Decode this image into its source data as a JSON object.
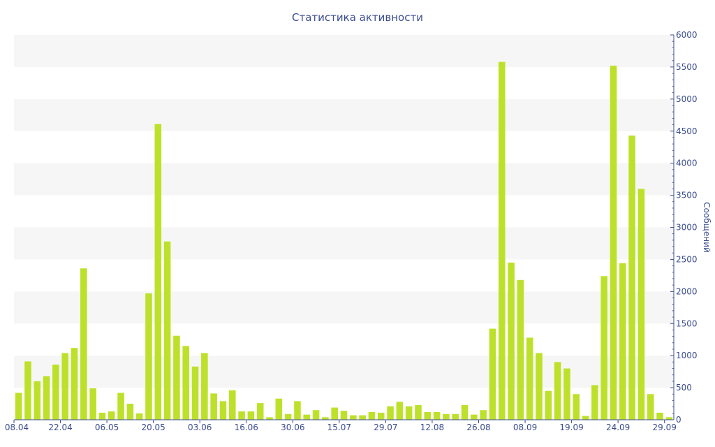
{
  "chart_data": {
    "type": "bar",
    "title": "Статистика активности",
    "ylabel": "Сообщений",
    "ylim": [
      0,
      6000
    ],
    "yticks": [
      0,
      500,
      1000,
      1500,
      2000,
      2500,
      3000,
      3500,
      4000,
      4500,
      5000,
      5500,
      6000
    ],
    "y_axis_side": "right",
    "grid": "alternating horizontal bands",
    "bar_color": "#bde12b",
    "band_color": "#f6f6f6",
    "text_color": "#3b4d8f",
    "xtick_labels": [
      "08.04",
      "22.04",
      "06.05",
      "20.05",
      "03.06",
      "16.06",
      "30.06",
      "15.07",
      "29.07",
      "12.08",
      "26.08",
      "08.09",
      "19.09",
      "24.09",
      "29.09"
    ],
    "xtick_bar_index": [
      0,
      5,
      10,
      15,
      20,
      25,
      30,
      35,
      40,
      45,
      50,
      55,
      60,
      65,
      70
    ],
    "values": [
      420,
      910,
      600,
      680,
      860,
      1040,
      1120,
      2360,
      490,
      110,
      130,
      420,
      250,
      100,
      1970,
      4610,
      2780,
      1310,
      1150,
      830,
      1040,
      410,
      290,
      460,
      130,
      130,
      260,
      40,
      330,
      90,
      290,
      80,
      150,
      40,
      190,
      140,
      70,
      70,
      120,
      110,
      210,
      280,
      210,
      230,
      120,
      120,
      90,
      90,
      230,
      80,
      150,
      1420,
      5580,
      2450,
      2180,
      1280,
      1040,
      450,
      900,
      800,
      400,
      60,
      540,
      2240,
      5520,
      2440,
      4430,
      3600,
      400,
      110,
      40
    ]
  }
}
